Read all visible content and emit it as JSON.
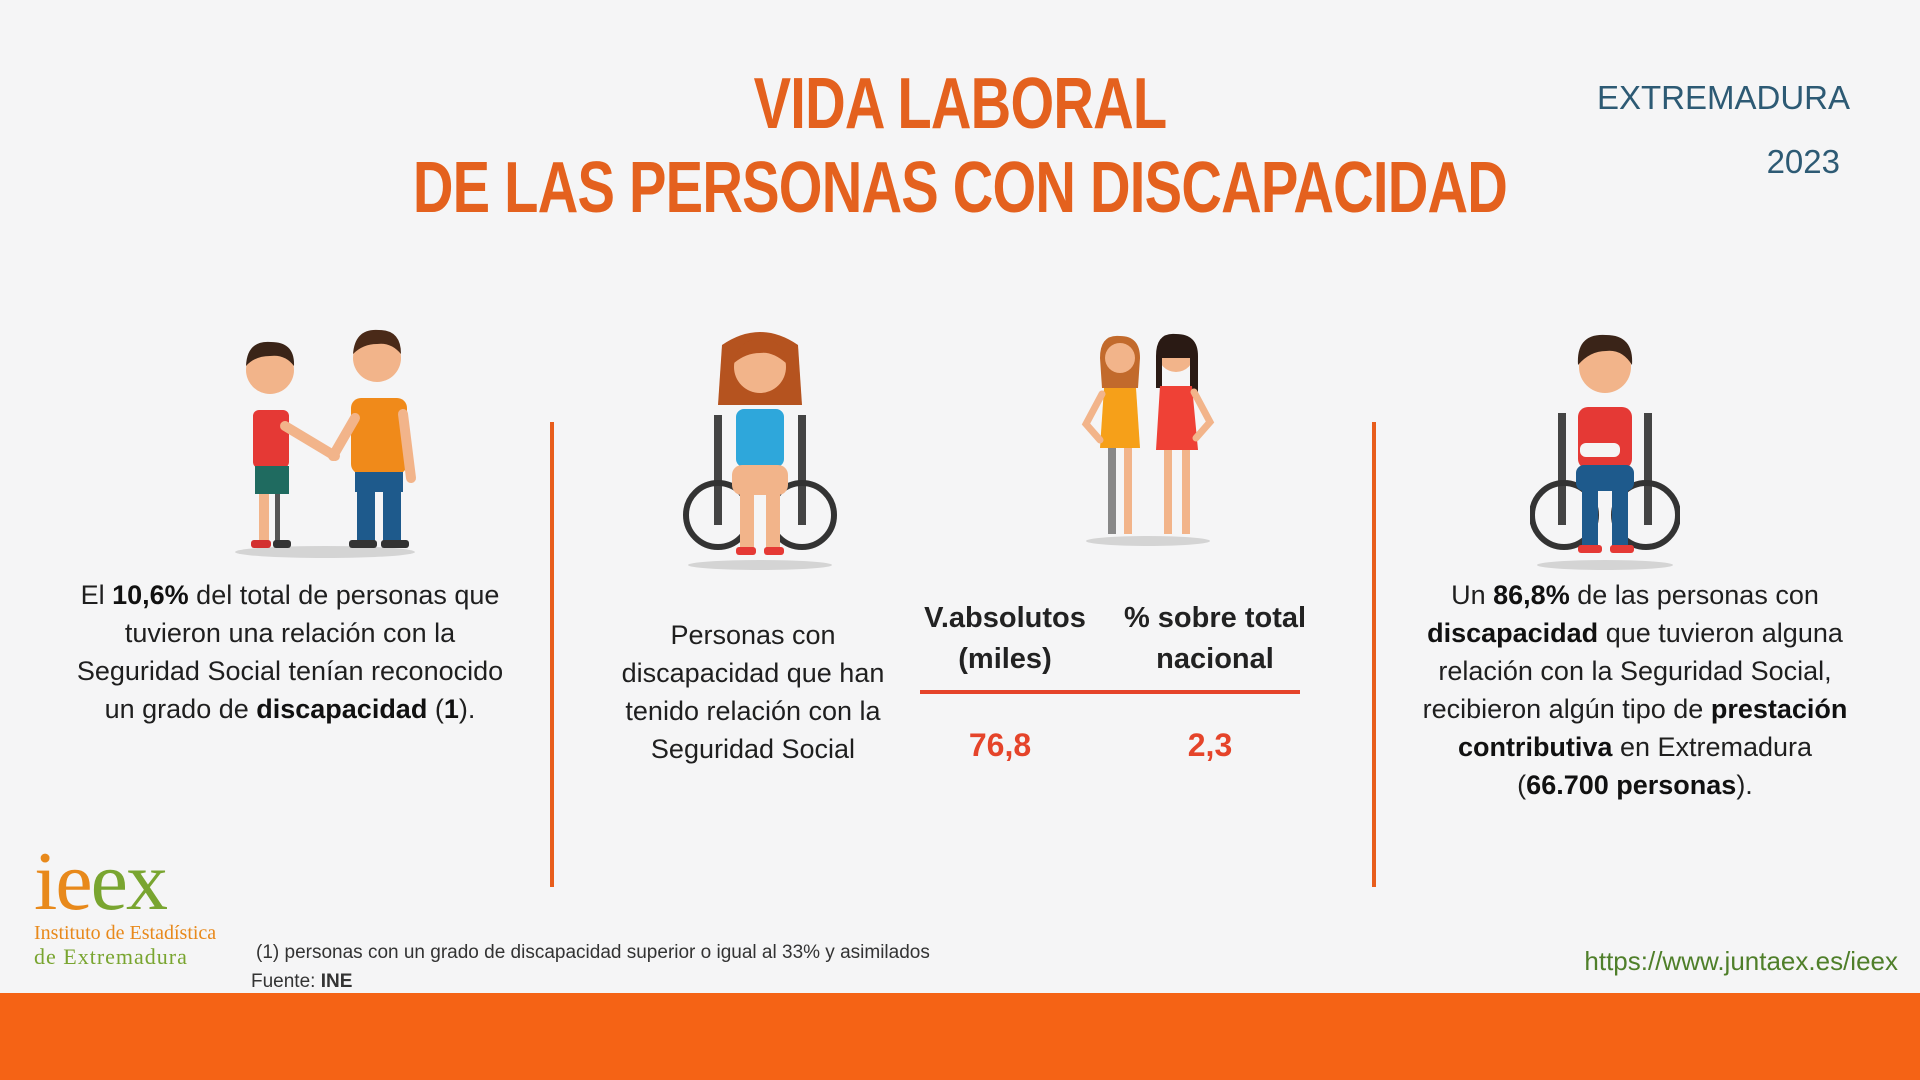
{
  "header": {
    "title_line1": "VIDA LABORAL",
    "title_line2": "DE LAS PERSONAS CON DISCAPACIDAD",
    "region": "EXTREMADURA",
    "year": "2023"
  },
  "left_panel": {
    "t1": "El ",
    "pct": "10,6%",
    "t2": " del total de personas que tuvieron una relación con la Seguridad Social tenían reconocido un grado de ",
    "bold": "discapacidad",
    "t3": " (",
    "note_ref": "1",
    "t4": ")."
  },
  "center_panel": {
    "description": "Personas con discapacidad que han tenido relación con la Seguridad Social",
    "col1_line1": "V.absolutos",
    "col1_line2": "(miles)",
    "col2_line1": "% sobre total",
    "col2_line2": "nacional",
    "val1": "76,8",
    "val2": "2,3"
  },
  "right_panel": {
    "t1": "Un ",
    "pct": "86,8%",
    "t2": " de las personas con ",
    "bold1": "discapacidad",
    "t3": " que tuvieron alguna relación con la Seguridad Social, recibieron algún tipo de ",
    "bold2": "prestación contributiva",
    "t4": " en Extremadura (",
    "bold3": "66.700 personas",
    "t5": ")."
  },
  "logo": {
    "l1": "i",
    "l2": "e",
    "l3": "e",
    "l4": "x",
    "sub1": "Instituto de Estadística",
    "sub2": "de Extremadura"
  },
  "footnote": {
    "note": "(1) personas con un grado de discapacidad superior o igual al 33% y asimilados",
    "source_label": "Fuente: ",
    "source_value": "INE"
  },
  "url": "https://www.juntaex.es/ieex",
  "colors": {
    "title": "#e4611e",
    "divider": "#e85d1c",
    "value": "#e5442a",
    "footer": "#f56315",
    "region": "#2d5a74",
    "url": "#4f7f2a"
  }
}
